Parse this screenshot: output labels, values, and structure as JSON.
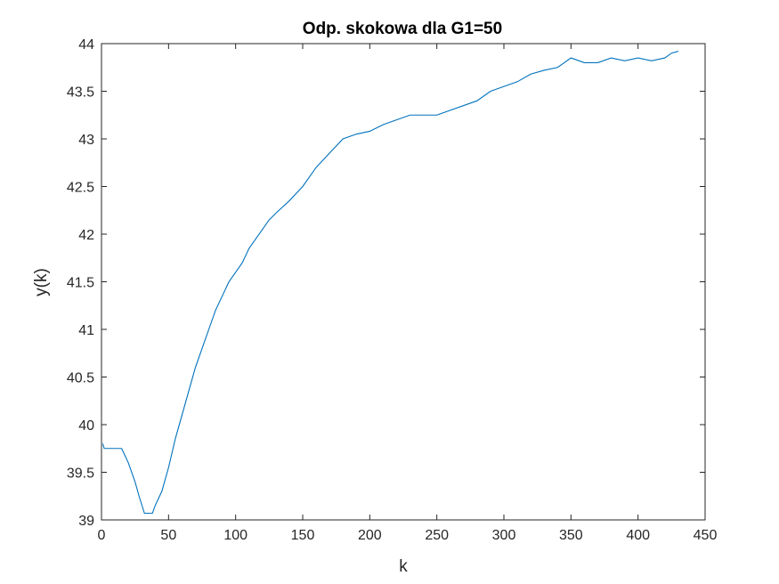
{
  "chart_data": {
    "type": "line",
    "title": "Odp. skokowa dla G1=50",
    "xlabel": "k",
    "ylabel": "y(k)",
    "xlim": [
      0,
      450
    ],
    "ylim": [
      39,
      44
    ],
    "xticks": [
      0,
      50,
      100,
      150,
      200,
      250,
      300,
      350,
      400,
      450
    ],
    "yticks": [
      39,
      39.5,
      40,
      40.5,
      41,
      41.5,
      42,
      42.5,
      43,
      43.5,
      44
    ],
    "grid": false,
    "line_color": "#0072BD",
    "series": [
      {
        "x": [
          1,
          2,
          15,
          20,
          25,
          28,
          32,
          38,
          40,
          45,
          50,
          55,
          60,
          65,
          70,
          75,
          80,
          85,
          90,
          95,
          100,
          105,
          110,
          115,
          120,
          125,
          130,
          140,
          150,
          160,
          170,
          180,
          190,
          200,
          210,
          220,
          230,
          240,
          250,
          260,
          270,
          280,
          290,
          300,
          310,
          320,
          330,
          340,
          345,
          350,
          360,
          370,
          380,
          390,
          400,
          410,
          420,
          425,
          430
        ],
        "y": [
          39.8,
          39.75,
          39.75,
          39.6,
          39.4,
          39.25,
          39.07,
          39.07,
          39.15,
          39.3,
          39.55,
          39.85,
          40.1,
          40.35,
          40.6,
          40.8,
          41.0,
          41.2,
          41.35,
          41.5,
          41.6,
          41.7,
          41.85,
          41.95,
          42.05,
          42.15,
          42.22,
          42.35,
          42.5,
          42.7,
          42.85,
          43.0,
          43.05,
          43.08,
          43.15,
          43.2,
          43.25,
          43.25,
          43.25,
          43.3,
          43.35,
          43.4,
          43.5,
          43.55,
          43.6,
          43.68,
          43.72,
          43.75,
          43.8,
          43.85,
          43.8,
          43.8,
          43.85,
          43.82,
          43.85,
          43.82,
          43.85,
          43.9,
          43.92
        ]
      }
    ]
  }
}
